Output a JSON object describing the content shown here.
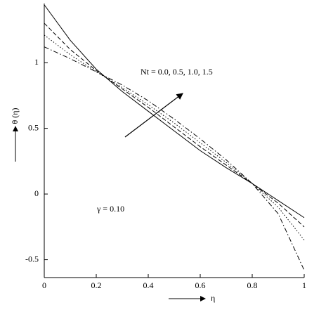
{
  "chart_data": {
    "type": "line",
    "x": [
      0,
      0.1,
      0.2,
      0.3,
      0.4,
      0.5,
      0.6,
      0.7,
      0.8,
      0.9,
      1
    ],
    "series": [
      {
        "color": "#000000",
        "dash": "solid",
        "values": [
          1.44,
          1.17,
          0.95,
          0.78,
          0.63,
          0.48,
          0.33,
          0.2,
          0.08,
          -0.05,
          -0.18
        ]
      },
      {
        "color": "#000000",
        "dash": "dashed",
        "values": [
          1.3,
          1.1,
          0.94,
          0.8,
          0.66,
          0.51,
          0.36,
          0.22,
          0.08,
          -0.07,
          -0.25
        ]
      },
      {
        "color": "#000000",
        "dash": "dotted",
        "values": [
          1.21,
          1.06,
          0.93,
          0.81,
          0.68,
          0.54,
          0.39,
          0.24,
          0.08,
          -0.1,
          -0.35
        ]
      },
      {
        "color": "#000000",
        "dash": "dashdot",
        "values": [
          1.12,
          1.03,
          0.93,
          0.83,
          0.71,
          0.57,
          0.42,
          0.26,
          0.08,
          -0.15,
          -0.58
        ]
      }
    ],
    "xlim": [
      0,
      1
    ],
    "xticks": [
      0,
      0.2,
      0.4,
      0.6,
      0.8,
      1
    ],
    "ylim": [
      -0.636,
      1.45
    ],
    "yticks": [
      -0.5,
      0,
      0.5,
      1
    ],
    "x_label": "η",
    "y_label": "θ (η)",
    "annotations": [
      "Nt = 0.0, 0.5, 1.0, 1.5",
      "γ = 0.10"
    ]
  }
}
